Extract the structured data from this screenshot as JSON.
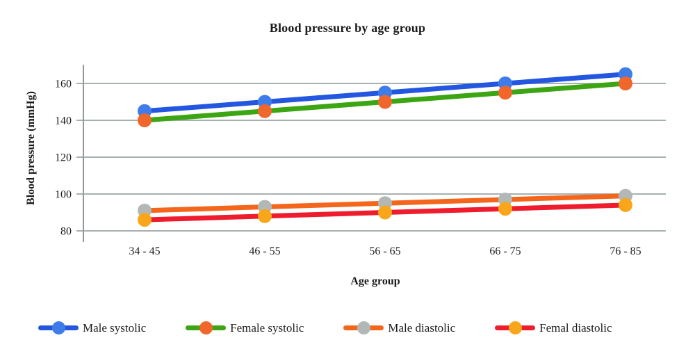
{
  "page": {
    "background": "#ffffff"
  },
  "chart_data": {
    "type": "line",
    "title": "Blood pressure by age group",
    "xlabel": "Age group",
    "ylabel": "Blood pressure (mmHg)",
    "categories": [
      "34 - 45",
      "46 - 55",
      "56 - 65",
      "66 - 75",
      "76 - 85"
    ],
    "yticks": [
      80,
      100,
      120,
      140,
      160
    ],
    "ylim": [
      80,
      170
    ],
    "grid": "horizontal-only",
    "legend_position": "bottom",
    "axis_color": "#8f9a9a",
    "grid_color": "#a6b0b0",
    "text_color": "#1b1b1b",
    "series": [
      {
        "name": "Male systolic",
        "line_color": "#2457e0",
        "marker_color": "#3e7ce9",
        "values": [
          145,
          150,
          155,
          160,
          165
        ]
      },
      {
        "name": "Female systolic",
        "line_color": "#3ba512",
        "marker_color": "#f0662b",
        "values": [
          140,
          145,
          150,
          155,
          160
        ]
      },
      {
        "name": "Male diastolic",
        "line_color": "#f4661c",
        "marker_color": "#b2b8b5",
        "values": [
          91,
          93,
          95,
          97,
          99
        ]
      },
      {
        "name": "Femal diastolic",
        "line_color": "#ee1c2d",
        "marker_color": "#f9a61a",
        "values": [
          86,
          88,
          90,
          92,
          94
        ]
      }
    ]
  }
}
